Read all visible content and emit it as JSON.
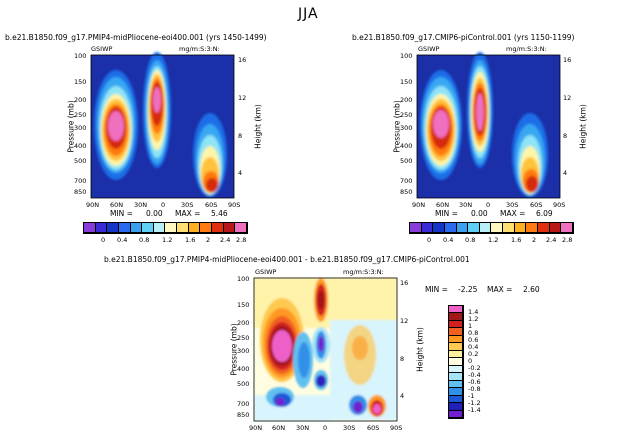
{
  "figure": {
    "title": "JJA"
  },
  "chart_data": [
    {
      "type": "heatmap",
      "title": "b.e21.B1850.f09_g17.PMIP4-midPliocene-eoi400.001 (yrs 1450-1499)",
      "variable_label": "GSIWP",
      "units": "mg/m:S:3:N:",
      "xlabel": "",
      "ylabel": "Pressure (mb)",
      "y2label": "Height (km)",
      "x_ticks": [
        "90N",
        "60N",
        "30N",
        "0",
        "30S",
        "60S",
        "90S"
      ],
      "y_ticks": [
        "100",
        "150",
        "200",
        "250",
        "300",
        "400",
        "500",
        "700",
        "850"
      ],
      "y2_ticks": [
        "16",
        "12",
        "8",
        "4"
      ],
      "min_label": "MIN =",
      "min": "0.00",
      "max_label": "MAX =",
      "max": "5.46",
      "colorbar_labels": [
        "0",
        "0.4",
        "0.8",
        "1.2",
        "1.6",
        "2",
        "2.4",
        "2.8"
      ]
    },
    {
      "type": "heatmap",
      "title": "b.e21.B1850.f09_g17.CMIP6-piControl.001 (yrs 1150-1199)",
      "variable_label": "GSIWP",
      "units": "mg/m:S:3:N:",
      "xlabel": "",
      "ylabel": "Pressure (mb)",
      "y2label": "Height (km)",
      "x_ticks": [
        "90N",
        "60N",
        "30N",
        "0",
        "30S",
        "60S",
        "90S"
      ],
      "y_ticks": [
        "100",
        "150",
        "200",
        "250",
        "300",
        "400",
        "500",
        "700",
        "850"
      ],
      "y2_ticks": [
        "16",
        "12",
        "8",
        "4"
      ],
      "min_label": "MIN =",
      "min": "0.00",
      "max_label": "MAX =",
      "max": "6.09",
      "colorbar_labels": [
        "0",
        "0.4",
        "0.8",
        "1.2",
        "1.6",
        "2",
        "2.4",
        "2.8"
      ]
    },
    {
      "type": "heatmap",
      "title": "b.e21.B1850.f09_g17.PMIP4-midPliocene-eoi400.001 - b.e21.B1850.f09_g17.CMIP6-piControl.001",
      "variable_label": "GSIWP",
      "units": "mg/m:S:3:N:",
      "xlabel": "",
      "ylabel": "Pressure (mb)",
      "y2label": "Height (km)",
      "x_ticks": [
        "90N",
        "60N",
        "30N",
        "0",
        "30S",
        "60S",
        "90S"
      ],
      "y_ticks": [
        "100",
        "150",
        "200",
        "250",
        "300",
        "400",
        "500",
        "700",
        "850"
      ],
      "y2_ticks": [
        "16",
        "12",
        "8",
        "4"
      ],
      "min_label": "MIN =",
      "min": "-2.25",
      "max_label": "MAX =",
      "max": "2.60",
      "colorbar_labels": [
        "1.4",
        "1.2",
        "1",
        "0.8",
        "0.6",
        "0.4",
        "0.2",
        "0",
        "-0.2",
        "-0.4",
        "-0.6",
        "-0.8",
        "-1",
        "-1.2",
        "-1.4"
      ]
    }
  ],
  "colors": {
    "abs_scale": [
      "#8a3cd8",
      "#3b2ad8",
      "#1535c8",
      "#2a6af0",
      "#3aa0f0",
      "#5fd0f5",
      "#b8f0f8",
      "#fff8c0",
      "#ffe070",
      "#ffb020",
      "#ff7a10",
      "#e03010",
      "#b81818",
      "#f070c0"
    ],
    "diff_scale": [
      "#ee60c8",
      "#a01818",
      "#d02020",
      "#f06020",
      "#ff9820",
      "#ffc850",
      "#fff0a0",
      "#fffde0",
      "#d8f4fc",
      "#a8e4f8",
      "#60c0f0",
      "#3090e8",
      "#1a58d8",
      "#2020b8",
      "#7020d0"
    ]
  }
}
